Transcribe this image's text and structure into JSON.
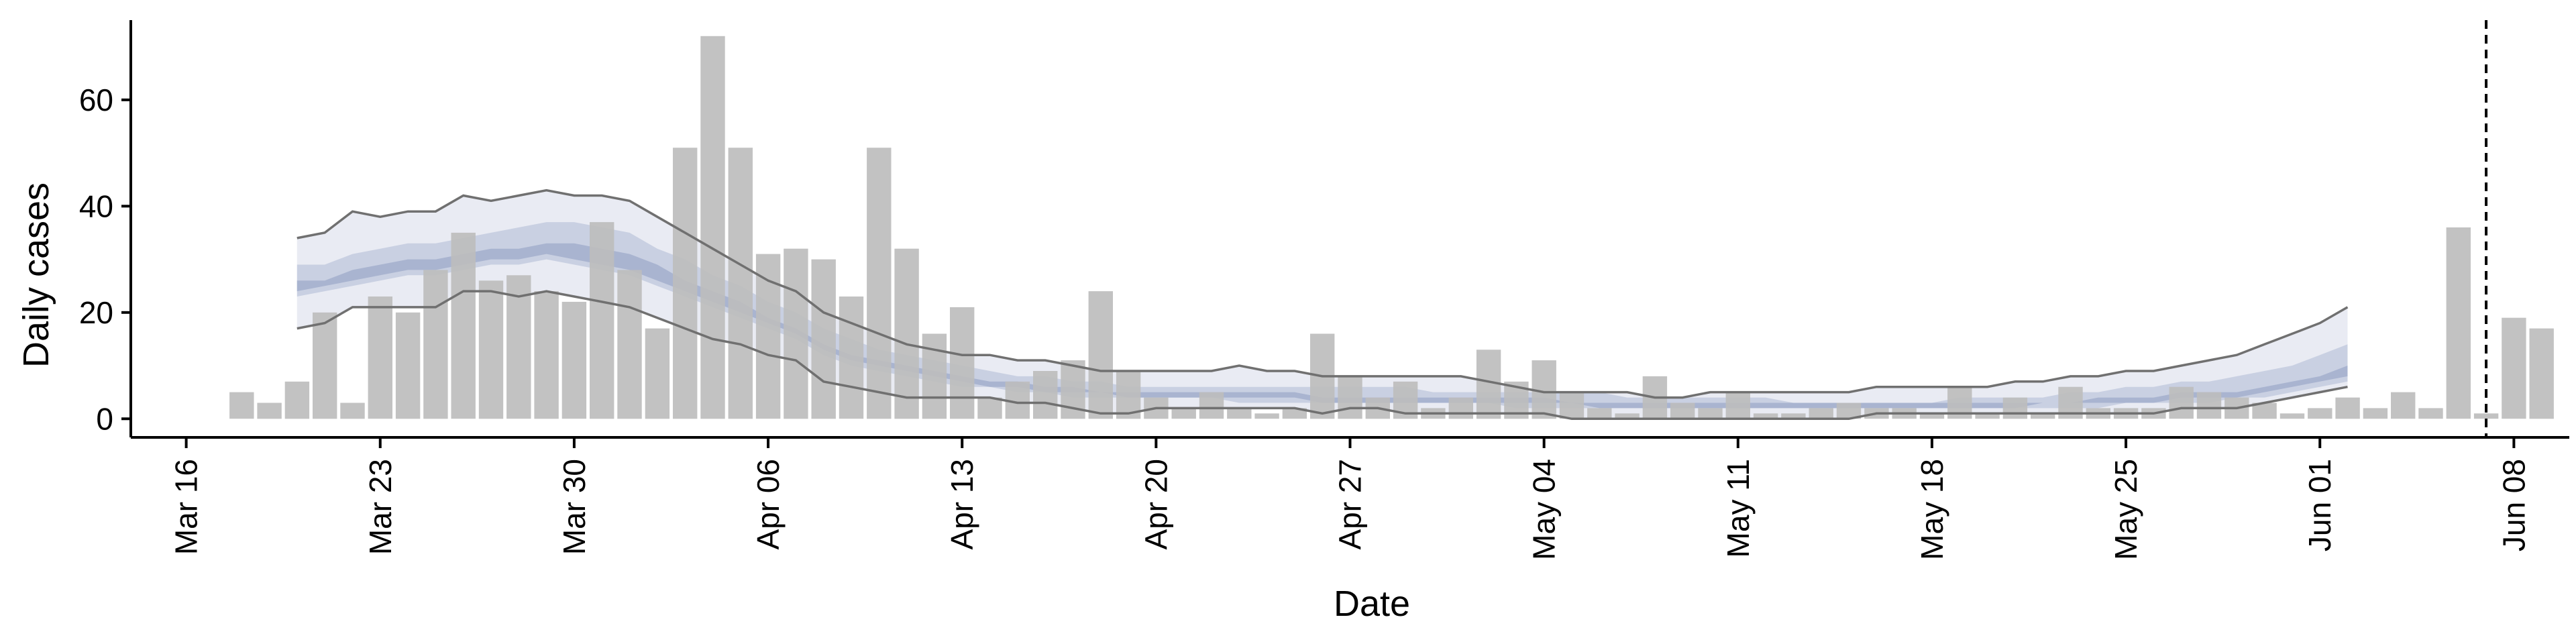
{
  "chart_data": {
    "type": "bar",
    "xlabel": "Date",
    "ylabel": "Daily cases",
    "ylim": [
      -3.5,
      75
    ],
    "xlim": [
      "2020-03-14",
      "2020-06-10"
    ],
    "y_ticks": [
      0,
      20,
      40,
      60
    ],
    "x_ticks": [
      {
        "date": "2020-03-16",
        "label": "Mar 16"
      },
      {
        "date": "2020-03-23",
        "label": "Mar 23"
      },
      {
        "date": "2020-03-30",
        "label": "Mar 30"
      },
      {
        "date": "2020-04-06",
        "label": "Apr 06"
      },
      {
        "date": "2020-04-13",
        "label": "Apr 13"
      },
      {
        "date": "2020-04-20",
        "label": "Apr 20"
      },
      {
        "date": "2020-04-27",
        "label": "Apr 27"
      },
      {
        "date": "2020-05-04",
        "label": "May 04"
      },
      {
        "date": "2020-05-11",
        "label": "May 11"
      },
      {
        "date": "2020-05-18",
        "label": "May 18"
      },
      {
        "date": "2020-05-25",
        "label": "May 25"
      },
      {
        "date": "2020-06-01",
        "label": "Jun 01"
      },
      {
        "date": "2020-06-08",
        "label": "Jun 08"
      }
    ],
    "bars_start_date": "2020-03-18",
    "bars": [
      5,
      3,
      7,
      20,
      3,
      23,
      20,
      28,
      35,
      26,
      27,
      24,
      22,
      37,
      28,
      17,
      51,
      72,
      51,
      31,
      32,
      30,
      23,
      51,
      32,
      16,
      21,
      4,
      7,
      9,
      11,
      24,
      9,
      4,
      2,
      5,
      2,
      1,
      2,
      16,
      8,
      4,
      7,
      2,
      4,
      13,
      7,
      11,
      5,
      2,
      1,
      8,
      3,
      2,
      5,
      1,
      1,
      2,
      3,
      2,
      2,
      1,
      6,
      1,
      4,
      1,
      6,
      2,
      2,
      2,
      6,
      5,
      4,
      3,
      1,
      2,
      4,
      2,
      5,
      2,
      36,
      1,
      19,
      17
    ],
    "series_start_date": "2020-03-20",
    "bands": {
      "outer_upper": [
        34,
        35,
        39,
        38,
        39,
        39,
        42,
        41,
        42,
        43,
        42,
        42,
        41,
        38,
        35,
        32,
        29,
        26,
        24,
        20,
        18,
        16,
        14,
        13,
        12,
        12,
        11,
        11,
        10,
        9,
        9,
        9,
        9,
        9,
        10,
        9,
        9,
        8,
        8,
        8,
        8,
        8,
        8,
        7,
        6,
        5,
        5,
        5,
        5,
        4,
        4,
        5,
        5,
        5,
        5,
        5,
        5,
        6,
        6,
        6,
        6,
        6,
        7,
        7,
        8,
        8,
        9,
        9,
        10,
        11,
        12,
        14,
        16,
        18,
        21
      ],
      "outer_lower": [
        17,
        18,
        21,
        21,
        21,
        21,
        24,
        24,
        23,
        24,
        23,
        22,
        21,
        19,
        17,
        15,
        14,
        12,
        11,
        7,
        6,
        5,
        4,
        4,
        4,
        4,
        3,
        3,
        2,
        1,
        1,
        2,
        2,
        2,
        2,
        2,
        2,
        1,
        2,
        2,
        1,
        1,
        1,
        1,
        1,
        1,
        0,
        0,
        0,
        0,
        0,
        0,
        0,
        0,
        0,
        0,
        0,
        1,
        1,
        1,
        1,
        1,
        1,
        1,
        1,
        1,
        1,
        1,
        2,
        2,
        2,
        3,
        4,
        5,
        6
      ],
      "mid_upper": [
        29,
        29,
        31,
        32,
        33,
        33,
        34,
        35,
        36,
        37,
        37,
        36,
        35,
        32,
        30,
        27,
        25,
        22,
        20,
        17,
        15,
        13,
        12,
        11,
        10,
        9,
        8,
        8,
        7,
        7,
        6,
        6,
        6,
        6,
        6,
        6,
        6,
        6,
        6,
        6,
        6,
        5,
        5,
        5,
        5,
        5,
        5,
        5,
        4,
        4,
        4,
        4,
        4,
        4,
        3,
        3,
        3,
        3,
        3,
        3,
        4,
        4,
        4,
        4,
        5,
        5,
        6,
        6,
        7,
        7,
        8,
        9,
        10,
        12,
        14
      ],
      "mid_lower": [
        23,
        24,
        25,
        26,
        27,
        27,
        28,
        29,
        29,
        30,
        29,
        28,
        27,
        25,
        23,
        21,
        19,
        17,
        15,
        12,
        10,
        9,
        8,
        7,
        6,
        6,
        5,
        5,
        4,
        4,
        4,
        4,
        4,
        4,
        3,
        3,
        3,
        3,
        3,
        3,
        3,
        3,
        3,
        3,
        2,
        2,
        2,
        2,
        2,
        2,
        2,
        2,
        2,
        2,
        2,
        2,
        2,
        2,
        2,
        2,
        2,
        2,
        2,
        2,
        2,
        2,
        3,
        3,
        3,
        3,
        4,
        4,
        5,
        6,
        7
      ],
      "inner_upper": [
        26,
        26,
        28,
        29,
        30,
        30,
        31,
        32,
        32,
        33,
        33,
        32,
        31,
        29,
        26,
        24,
        22,
        19,
        17,
        14,
        12,
        11,
        10,
        9,
        8,
        7,
        7,
        6,
        6,
        5,
        5,
        5,
        5,
        5,
        5,
        5,
        5,
        4,
        4,
        4,
        4,
        4,
        4,
        4,
        4,
        4,
        3,
        3,
        3,
        3,
        3,
        3,
        3,
        3,
        3,
        3,
        3,
        3,
        3,
        3,
        3,
        3,
        3,
        3,
        3,
        4,
        4,
        4,
        5,
        5,
        5,
        6,
        7,
        8,
        10
      ],
      "inner_lower": [
        24,
        25,
        26,
        27,
        28,
        28,
        29,
        30,
        30,
        31,
        30,
        29,
        28,
        26,
        24,
        22,
        20,
        18,
        16,
        13,
        11,
        10,
        9,
        8,
        7,
        6,
        6,
        5,
        5,
        5,
        4,
        4,
        4,
        4,
        4,
        4,
        4,
        3,
        3,
        3,
        3,
        3,
        3,
        3,
        3,
        3,
        3,
        2,
        2,
        2,
        2,
        2,
        2,
        2,
        2,
        2,
        2,
        2,
        2,
        2,
        2,
        2,
        2,
        3,
        3,
        3,
        3,
        3,
        4,
        4,
        4,
        5,
        6,
        7,
        8
      ]
    },
    "reference_line_date": "2020-06-07",
    "grid": false,
    "colors": {
      "bars": "#bdbdbd",
      "outer_band": "#e9ebf3",
      "mid_band": "#c9d0e2",
      "inner_band": "#a9b4d0",
      "band_edge": "#707070",
      "axis": "#000000",
      "reference_line": "#000000"
    }
  }
}
